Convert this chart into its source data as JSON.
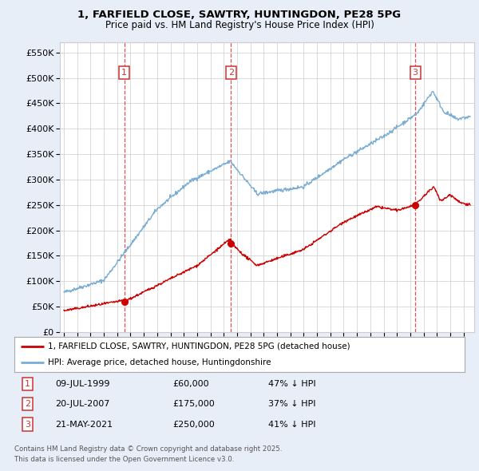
{
  "title1": "1, FARFIELD CLOSE, SAWTRY, HUNTINGDON, PE28 5PG",
  "title2": "Price paid vs. HM Land Registry's House Price Index (HPI)",
  "legend_label_red": "1, FARFIELD CLOSE, SAWTRY, HUNTINGDON, PE28 5PG (detached house)",
  "legend_label_blue": "HPI: Average price, detached house, Huntingdonshire",
  "purchase1_date": "09-JUL-1999",
  "purchase1_price": 60000,
  "purchase1_pct": "47% ↓ HPI",
  "purchase2_date": "20-JUL-2007",
  "purchase2_price": 175000,
  "purchase2_pct": "37% ↓ HPI",
  "purchase3_date": "21-MAY-2021",
  "purchase3_price": 250000,
  "purchase3_pct": "41% ↓ HPI",
  "footnote1": "Contains HM Land Registry data © Crown copyright and database right 2025.",
  "footnote2": "This data is licensed under the Open Government Licence v3.0.",
  "bg_color": "#e8eef8",
  "plot_bg_color": "#ffffff",
  "red_color": "#cc0000",
  "blue_color": "#7aadd4",
  "grid_color": "#cccccc",
  "vline_color": "#dd3333",
  "box_edge_color": "#cc3333",
  "ylim_max": 570000,
  "ylim_min": 0,
  "yticks": [
    0,
    50000,
    100000,
    150000,
    200000,
    250000,
    300000,
    350000,
    400000,
    450000,
    500000,
    550000
  ],
  "xlim_min": 1994.7,
  "xlim_max": 2025.8
}
